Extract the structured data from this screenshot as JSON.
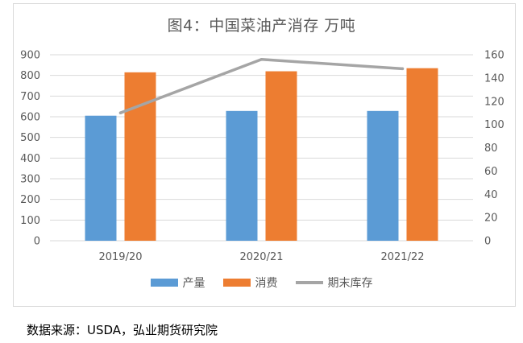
{
  "title": "图4：中国菜油产消存  万吨",
  "source": "数据来源：USDA，弘业期货研究院",
  "colors": {
    "production": "#5b9bd5",
    "consumption": "#ed7d31",
    "stock": "#a5a5a5",
    "grid": "#d9d9d9",
    "axis_text": "#595959"
  },
  "chart_data": {
    "type": "bar",
    "categories": [
      "2019/20",
      "2020/21",
      "2021/22"
    ],
    "series": [
      {
        "name": "产量",
        "type": "bar",
        "axis": "left",
        "values": [
          605,
          628,
          628
        ]
      },
      {
        "name": "消费",
        "type": "bar",
        "axis": "left",
        "values": [
          815,
          820,
          835
        ]
      },
      {
        "name": "期末库存",
        "type": "line",
        "axis": "right",
        "values": [
          110,
          156,
          148
        ]
      }
    ],
    "ylim_left": [
      0,
      900
    ],
    "yticks_left": [
      "0",
      "100",
      "200",
      "300",
      "400",
      "500",
      "600",
      "700",
      "800",
      "900"
    ],
    "ylim_right": [
      0,
      160
    ],
    "yticks_right": [
      "0",
      "20",
      "40",
      "60",
      "80",
      "100",
      "120",
      "140",
      "160"
    ],
    "grid": true,
    "legend_position": "bottom"
  }
}
